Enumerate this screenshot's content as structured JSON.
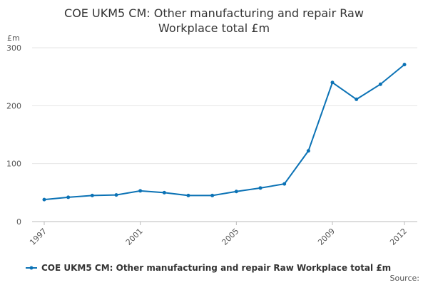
{
  "chart_data": {
    "type": "line",
    "title": [
      "COE UKM5 CM: Other manufacturing and repair Raw",
      "Workplace total £m"
    ],
    "y_label": "£m",
    "source": "Source:",
    "x": [
      1997,
      1998,
      1999,
      2000,
      2001,
      2002,
      2003,
      2004,
      2005,
      2006,
      2007,
      2008,
      2009,
      2010,
      2011,
      2012
    ],
    "series": [
      {
        "name": "COE UKM5 CM: Other manufacturing and repair Raw Workplace total £m",
        "color": "#0b72b5",
        "values": [
          38,
          42,
          45,
          46,
          53,
          50,
          45,
          45,
          52,
          58,
          65,
          122,
          240,
          211,
          237,
          271
        ]
      }
    ],
    "xlim": [
      1997,
      2012
    ],
    "xticks": [
      1997,
      2001,
      2005,
      2009,
      2012
    ],
    "ylim": [
      0,
      300
    ],
    "yticks": [
      0,
      100,
      200,
      300
    ],
    "grid": true
  }
}
